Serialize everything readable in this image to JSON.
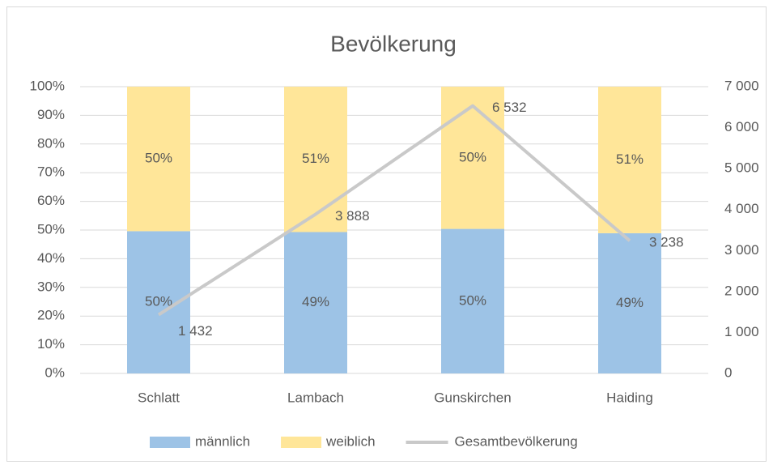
{
  "chart_data": {
    "type": "bar",
    "stacked": true,
    "title": "Bevölkerung",
    "categories": [
      "Schlatt",
      "Lambach",
      "Gunskirchen",
      "Haiding"
    ],
    "series": [
      {
        "name": "männlich",
        "type": "bar",
        "color": "#9dc3e6",
        "values": [
          49.6,
          49.3,
          50.4,
          48.9
        ],
        "value_labels": [
          "50%",
          "49%",
          "50%",
          "49%"
        ]
      },
      {
        "name": "weiblich",
        "type": "bar",
        "color": "#ffe699",
        "values": [
          50.4,
          50.7,
          49.6,
          51.1
        ],
        "value_labels": [
          "50%",
          "51%",
          "50%",
          "51%"
        ]
      },
      {
        "name": "Gesamtbevölkerung",
        "type": "line",
        "axis": "y2",
        "color": "#c9c9c9",
        "values": [
          1432,
          3888,
          6532,
          3238
        ],
        "value_labels": [
          "1 432",
          "3 888",
          "6 532",
          "3 238"
        ]
      }
    ],
    "ylim": [
      0,
      100
    ],
    "yticks": [
      {
        "value": 0,
        "label": "0%"
      },
      {
        "value": 10,
        "label": "10%"
      },
      {
        "value": 20,
        "label": "20%"
      },
      {
        "value": 30,
        "label": "30%"
      },
      {
        "value": 40,
        "label": "40%"
      },
      {
        "value": 50,
        "label": "50%"
      },
      {
        "value": 60,
        "label": "60%"
      },
      {
        "value": 70,
        "label": "70%"
      },
      {
        "value": 80,
        "label": "80%"
      },
      {
        "value": 90,
        "label": "90%"
      },
      {
        "value": 100,
        "label": "100%"
      }
    ],
    "y2lim": [
      0,
      7000
    ],
    "y2ticks": [
      0,
      {
        "value": 1000,
        "label": "1 000"
      },
      {
        "value": 2000,
        "label": "2 000"
      },
      {
        "value": 3000,
        "label": "3 000"
      },
      {
        "value": 4000,
        "label": "4 000"
      },
      {
        "value": 5000,
        "label": "5 000"
      },
      {
        "value": 6000,
        "label": "6 000"
      },
      {
        "value": 7000,
        "label": "7 000"
      }
    ],
    "legend": "bottom"
  }
}
